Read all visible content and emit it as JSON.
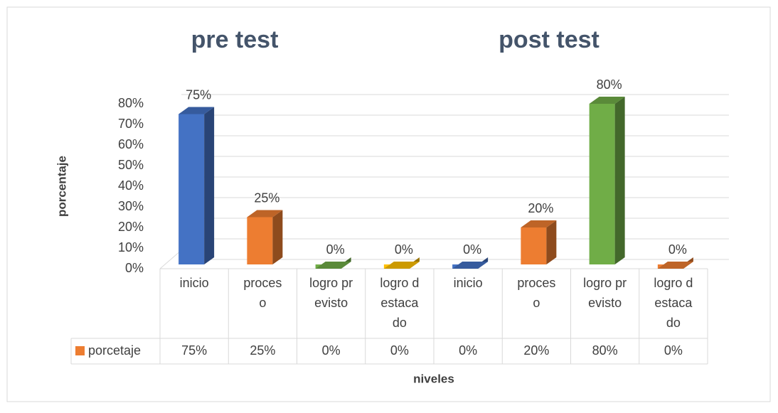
{
  "chart_data": {
    "type": "bar3d",
    "annotations": [
      {
        "text": "pre test"
      },
      {
        "text": "post test"
      }
    ],
    "ylabel": "porcentaje",
    "xlabel": "niveles",
    "categories": [
      "inicio",
      "proceso",
      "logro previsto",
      "logro destacado",
      "inicio",
      "proceso",
      "logro previsto",
      "logro destacado"
    ],
    "series": [
      {
        "name": "porcetaje",
        "color": "#ed7d31",
        "values": [
          75,
          25,
          0,
          0,
          0,
          20,
          80,
          0
        ],
        "value_labels": [
          "75%",
          "25%",
          "0%",
          "0%",
          "0%",
          "20%",
          "80%",
          "0%"
        ],
        "colors": [
          "#4472c4",
          "#ed7d31",
          "#70ad47",
          "#ffc000",
          "#4472c4",
          "#ed7d31",
          "#70ad47",
          "#ed7d31"
        ]
      }
    ],
    "ylim": [
      0,
      80
    ],
    "yticks": [
      {
        "value": 0,
        "label": "0%"
      },
      {
        "value": 10,
        "label": "10%"
      },
      {
        "value": 20,
        "label": "20%"
      },
      {
        "value": 30,
        "label": "30%"
      },
      {
        "value": 40,
        "label": "40%"
      },
      {
        "value": 50,
        "label": "50%"
      },
      {
        "value": 60,
        "label": "60%"
      },
      {
        "value": 70,
        "label": "70%"
      },
      {
        "value": 80,
        "label": "80%"
      }
    ],
    "grid": true
  }
}
